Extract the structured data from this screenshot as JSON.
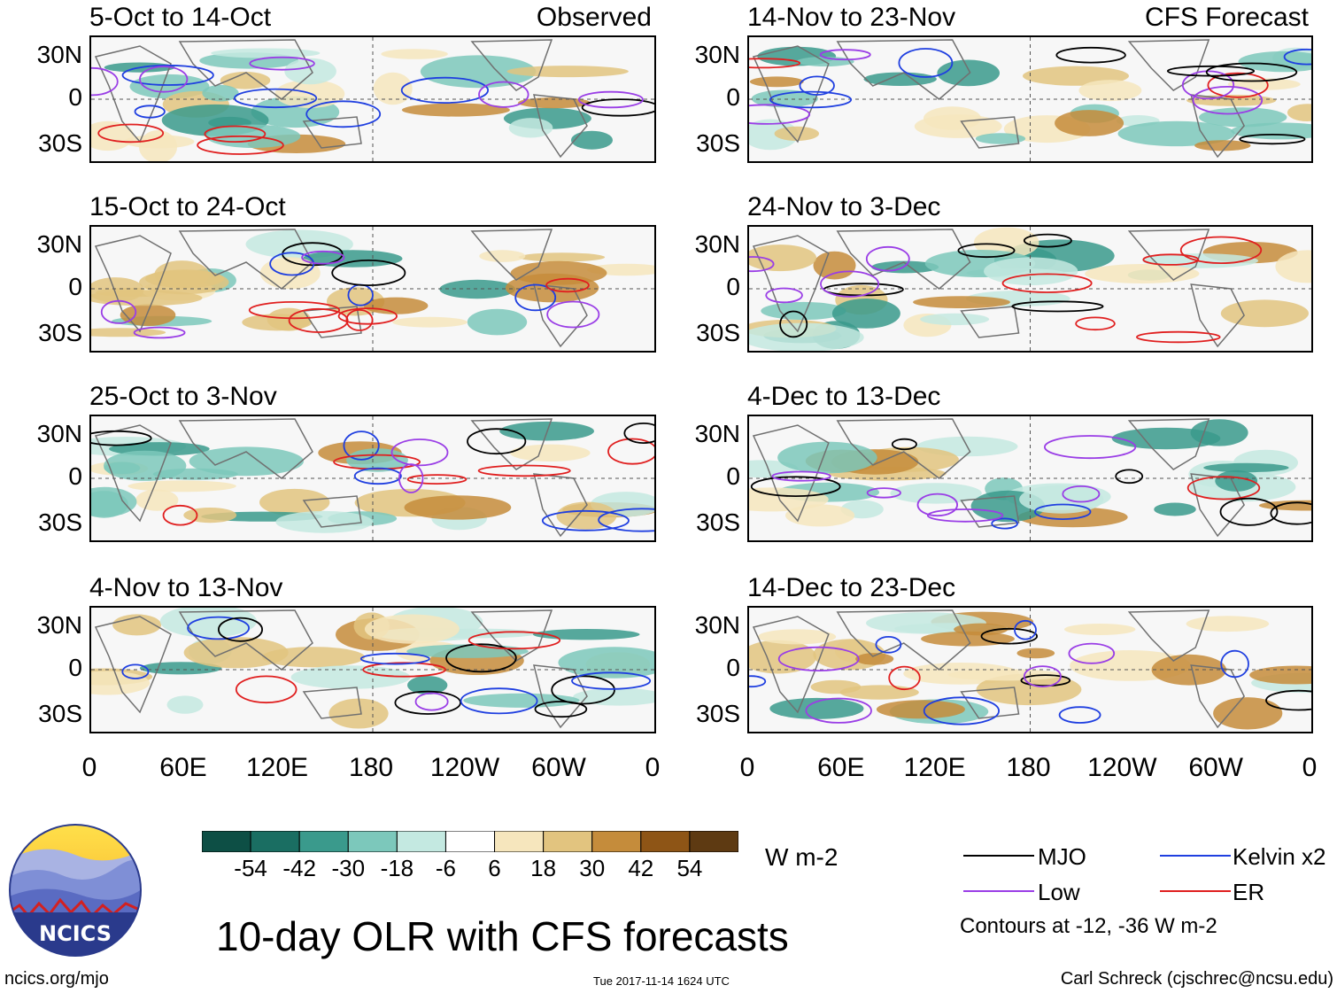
{
  "header": {
    "left_label": "Observed",
    "right_label": "CFS Forecast"
  },
  "panels_left": [
    {
      "period": "5-Oct to 14-Oct"
    },
    {
      "period": "15-Oct to 24-Oct"
    },
    {
      "period": "25-Oct to 3-Nov"
    },
    {
      "period": "4-Nov to 13-Nov"
    }
  ],
  "panels_right": [
    {
      "period": "14-Nov to 23-Nov"
    },
    {
      "period": "24-Nov to 3-Dec"
    },
    {
      "period": "4-Dec to 13-Dec"
    },
    {
      "period": "14-Dec to 23-Dec"
    }
  ],
  "axes": {
    "y_ticks": [
      "30N",
      "0",
      "30S"
    ],
    "x_ticks": [
      "0",
      "60E",
      "120E",
      "180",
      "120W",
      "60W",
      "0"
    ]
  },
  "colorbar": {
    "labels": [
      "-54",
      "-42",
      "-30",
      "-18",
      "-6",
      "6",
      "18",
      "30",
      "42",
      "54"
    ],
    "colors": [
      "#0d4f45",
      "#1a6e62",
      "#3a9a8c",
      "#7cc8bb",
      "#c4e9e1",
      "#ffffff",
      "#f6e6bd",
      "#e2c47f",
      "#c58c3b",
      "#8e5516",
      "#5e3a12"
    ],
    "units": "W m-2"
  },
  "legend": {
    "items": [
      {
        "label": "MJO",
        "color": "#000000"
      },
      {
        "label": "Kelvin x2",
        "color": "#1f3fe0"
      },
      {
        "label": "Low",
        "color": "#9a3ee6"
      },
      {
        "label": "ER",
        "color": "#e01f1f"
      }
    ],
    "contours_note": "Contours at -12, -36 W m-2"
  },
  "title": "10-day OLR with CFS forecasts",
  "footer": {
    "website": "ncics.org/mjo",
    "timestamp": "Tue 2017-11-14 1624 UTC",
    "author": "Carl Schreck (cjschrec@ncsu.edu)"
  },
  "logo": {
    "text": "NCICS"
  }
}
